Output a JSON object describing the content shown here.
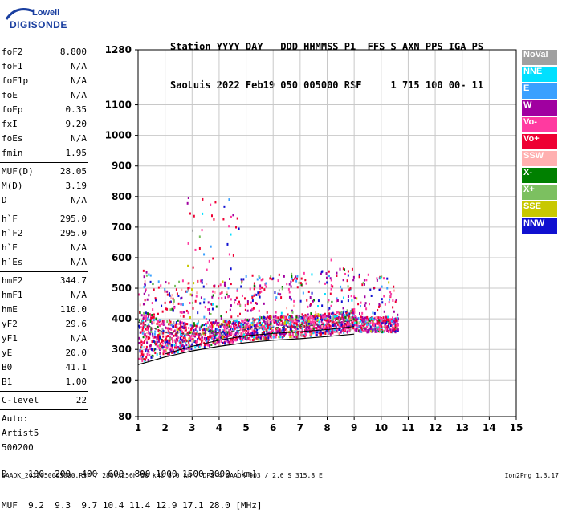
{
  "logo": {
    "line1": "Lowell",
    "line2": "DIGISONDE"
  },
  "header": {
    "line1": "Station YYYY DAY   DDD HHMMSS P1  FFS S AXN PPS IGA PS",
    "line2": "SaoLuis 2022 Feb19 050 005000 RSF     1 715 100 00- 11"
  },
  "params_a": [
    {
      "k": "foF2",
      "v": "8.800"
    },
    {
      "k": "foF1",
      "v": "N/A"
    },
    {
      "k": "foF1p",
      "v": "N/A"
    },
    {
      "k": "foE",
      "v": "N/A"
    },
    {
      "k": "foEp",
      "v": "0.35"
    },
    {
      "k": "fxI",
      "v": "9.20"
    },
    {
      "k": "foEs",
      "v": "N/A"
    },
    {
      "k": "fmin",
      "v": "1.95"
    }
  ],
  "params_b": [
    {
      "k": "MUF(D)",
      "v": "28.05"
    },
    {
      "k": "M(D)",
      "v": "3.19"
    },
    {
      "k": "D",
      "v": "N/A"
    }
  ],
  "params_c": [
    {
      "k": "h`F",
      "v": "295.0"
    },
    {
      "k": "h`F2",
      "v": "295.0"
    },
    {
      "k": "h`E",
      "v": "N/A"
    },
    {
      "k": "h`Es",
      "v": "N/A"
    }
  ],
  "params_d": [
    {
      "k": "hmF2",
      "v": "344.7"
    },
    {
      "k": "hmF1",
      "v": "N/A"
    },
    {
      "k": "hmE",
      "v": "110.0"
    },
    {
      "k": "yF2",
      "v": "29.6"
    },
    {
      "k": "yF1",
      "v": "N/A"
    },
    {
      "k": "yE",
      "v": "20.0"
    },
    {
      "k": "B0",
      "v": "41.1"
    },
    {
      "k": "B1",
      "v": "1.00"
    }
  ],
  "params_e": [
    {
      "k": "C-level",
      "v": "22"
    }
  ],
  "auto": {
    "l1": "Auto:",
    "l2": "Artist5",
    "l3": "500200"
  },
  "legend": [
    {
      "label": "NoVal",
      "color": "#a0a0a0"
    },
    {
      "label": "NNE",
      "color": "#00e0ff"
    },
    {
      "label": "E",
      "color": "#3aa0ff"
    },
    {
      "label": "W",
      "color": "#a000a0"
    },
    {
      "label": "Vo-",
      "color": "#ff3aa0"
    },
    {
      "label": "Vo+",
      "color": "#ee0033"
    },
    {
      "label": "SSW",
      "color": "#ffb0b0"
    },
    {
      "label": "X-",
      "color": "#008000"
    },
    {
      "label": "X+",
      "color": "#7cc060"
    },
    {
      "label": "SSE",
      "color": "#c8c800"
    },
    {
      "label": "NNW",
      "color": "#1010d0"
    }
  ],
  "footer": {
    "d_line": "D    100  200  400  600  800 1000 1500 3000 [km]",
    "muf_line": "MUF  9.2  9.3  9.7 10.4 11.4 12.9 17.1 28.0 [MHz]",
    "file_line": "SAAOK_2022050005000.RSF / 280fx256h 50 kHz 5.0 km / DPS-4 SAAOK 903 / 2.6 S 315.8 E",
    "version": "Ion2Png 1.3.17"
  },
  "chart_data": {
    "type": "scatter",
    "xlim": [
      1,
      15
    ],
    "ylim": [
      80,
      1280
    ],
    "x_ticks": [
      1,
      2,
      3,
      4,
      5,
      6,
      7,
      8,
      9,
      10,
      11,
      12,
      13,
      14,
      15
    ],
    "y_ticks": [
      80,
      200,
      300,
      400,
      500,
      600,
      700,
      800,
      900,
      1000,
      1100,
      1280
    ],
    "grid": true,
    "x_tick_labels": [
      "1",
      "2",
      "3",
      "4",
      "5",
      "6",
      "7",
      "8",
      "9",
      "10",
      "11",
      "12",
      "13",
      "14",
      "15"
    ],
    "y_tick_labels": [
      "80",
      "200",
      "300",
      "400",
      "500",
      "600",
      "700",
      "800",
      "900",
      "1000",
      "1100",
      "1280"
    ],
    "trace_lower": {
      "x": [
        1.0,
        2.0,
        3.0,
        4.0,
        5.0,
        6.0,
        7.0,
        8.0,
        9.0
      ],
      "y": [
        250,
        275,
        295,
        310,
        322,
        330,
        335,
        342,
        350
      ]
    },
    "trace_upper": {
      "x": [
        1.0,
        2.0,
        3.0,
        4.0,
        5.0,
        6.0,
        7.0,
        8.0,
        9.0
      ],
      "y": [
        390,
        355,
        350,
        355,
        365,
        372,
        375,
        382,
        395
      ]
    },
    "trace_mid": {
      "x": [
        2.0,
        3.0,
        4.0,
        5.0,
        6.0,
        7.0,
        8.0,
        9.0
      ],
      "y": [
        285,
        310,
        330,
        345,
        352,
        358,
        365,
        375
      ]
    }
  }
}
